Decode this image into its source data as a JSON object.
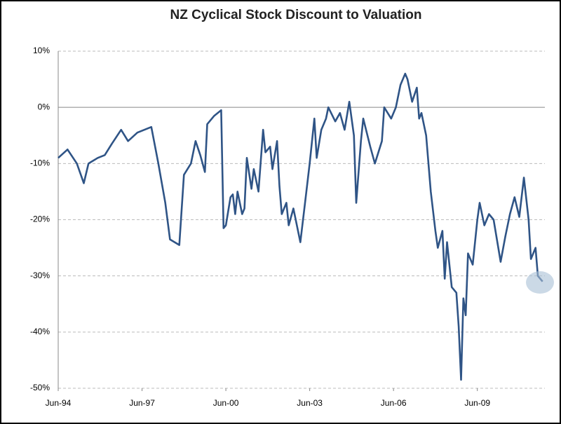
{
  "chart_data": {
    "type": "line",
    "title": "NZ Cyclical Stock Discount to Valuation",
    "x": [
      "1994-06",
      "1994-10",
      "1995-02",
      "1995-05",
      "1995-07",
      "1995-11",
      "1996-02",
      "1996-05",
      "1996-09",
      "1996-12",
      "1997-04",
      "1997-10",
      "1998-01",
      "1998-04",
      "1998-06",
      "1998-10",
      "1998-12",
      "1999-03",
      "1999-05",
      "1999-07",
      "1999-09",
      "1999-10",
      "2000-01",
      "2000-04",
      "2000-05",
      "2000-06",
      "2000-08",
      "2000-09",
      "2000-10",
      "2000-11",
      "2001-01",
      "2001-02",
      "2001-03",
      "2001-05",
      "2001-06",
      "2001-08",
      "2001-10",
      "2001-11",
      "2002-01",
      "2002-02",
      "2002-04",
      "2002-05",
      "2002-06",
      "2002-08",
      "2002-09",
      "2002-11",
      "2003-02",
      "2003-04",
      "2003-06",
      "2003-08",
      "2003-09",
      "2003-11",
      "2004-01",
      "2004-02",
      "2004-05",
      "2004-07",
      "2004-09",
      "2004-11",
      "2005-01",
      "2005-02",
      "2005-04",
      "2005-05",
      "2005-08",
      "2005-10",
      "2006-01",
      "2006-02",
      "2006-05",
      "2006-07",
      "2006-09",
      "2006-11",
      "2006-12",
      "2007-02",
      "2007-04",
      "2007-05",
      "2007-06",
      "2007-08",
      "2007-10",
      "2007-12",
      "2008-01",
      "2008-03",
      "2008-04",
      "2008-05",
      "2008-07",
      "2008-09",
      "2008-10",
      "2008-11",
      "2008-12",
      "2009-01",
      "2009-02",
      "2009-04",
      "2009-06",
      "2009-07",
      "2009-09",
      "2009-11",
      "2010-01",
      "2010-03",
      "2010-04",
      "2010-06",
      "2010-08",
      "2010-10",
      "2010-12",
      "2011-02",
      "2011-04",
      "2011-05",
      "2011-07",
      "2011-08",
      "2011-10"
    ],
    "series": [
      {
        "name": "Discount",
        "color": "#2f5486",
        "values": [
          -9,
          -7.5,
          -10,
          -13.5,
          -10,
          -9,
          -8.5,
          -6.5,
          -4,
          -6,
          -4.5,
          -3.5,
          -10,
          -17,
          -23.5,
          -24.5,
          -12,
          -10,
          -6,
          -8.5,
          -11.5,
          -3,
          -1.5,
          -0.5,
          -21.5,
          -21,
          -16,
          -15.5,
          -19,
          -15,
          -19,
          -18,
          -9,
          -14.5,
          -11,
          -15,
          -4,
          -8,
          -7,
          -11,
          -6,
          -14,
          -19,
          -17,
          -21,
          -18,
          -24,
          -17,
          -10,
          -2,
          -9,
          -4,
          -2,
          0,
          -2.5,
          -1,
          -4,
          1,
          -5,
          -17,
          -6,
          -2,
          -7,
          -10,
          -6,
          0,
          -2,
          0,
          4,
          6,
          5,
          1,
          3.5,
          -2,
          -1,
          -5,
          -15,
          -22,
          -25,
          -22,
          -30.5,
          -24,
          -32,
          -33,
          -39,
          -48.5,
          -34,
          -37,
          -26,
          -28,
          -20,
          -17,
          -21,
          -19,
          -20,
          -25,
          -27.5,
          -23,
          -19,
          -16,
          -19.5,
          -12.5,
          -20,
          -27,
          -25,
          -30,
          -31
        ]
      }
    ],
    "xlim": [
      "1994-06",
      "2011-11"
    ],
    "xticks": [
      {
        "value": "1994-06",
        "label": "Jun-94"
      },
      {
        "value": "1997-06",
        "label": "Jun-97"
      },
      {
        "value": "2000-06",
        "label": "Jun-00"
      },
      {
        "value": "2003-06",
        "label": "Jun-03"
      },
      {
        "value": "2006-06",
        "label": "Jun-06"
      },
      {
        "value": "2009-06",
        "label": "Jun-09"
      }
    ],
    "ylim": [
      -50,
      10
    ],
    "yticks": [
      {
        "value": 10,
        "label": "10%"
      },
      {
        "value": 0,
        "label": "0%"
      },
      {
        "value": -10,
        "label": "-10%"
      },
      {
        "value": -20,
        "label": "-20%"
      },
      {
        "value": -30,
        "label": "-30%"
      },
      {
        "value": -40,
        "label": "-40%"
      },
      {
        "value": -50,
        "label": "-50%"
      }
    ],
    "grid": true
  }
}
